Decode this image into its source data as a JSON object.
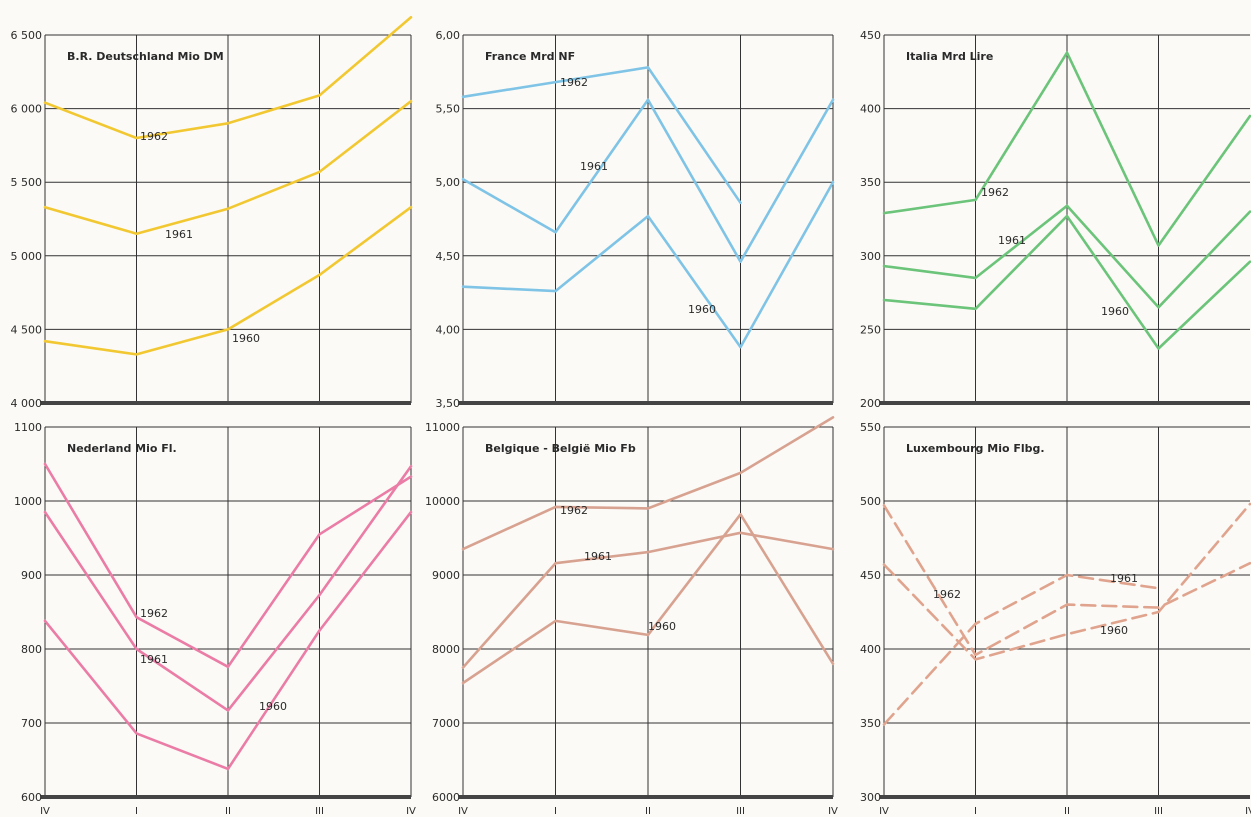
{
  "chart_data": [
    {
      "type": "line",
      "title": "B.R. Deutschland Mio DM",
      "color": "#f2c832",
      "dashed": false,
      "categories": [
        "IV",
        "I",
        "II",
        "III",
        "IV"
      ],
      "yticks": [
        "4 000",
        "4 500",
        "5 000",
        "5 500",
        "6 000",
        "6 500"
      ],
      "ylim": [
        4000,
        6500
      ],
      "series": [
        {
          "name": "1962",
          "values": [
            6040,
            5800,
            5900,
            6090,
            6620
          ]
        },
        {
          "name": "1961",
          "values": [
            5330,
            5150,
            5320,
            5570,
            6050
          ]
        },
        {
          "name": "1960",
          "values": [
            4420,
            4330,
            4500,
            4870,
            5330
          ]
        }
      ]
    },
    {
      "type": "line",
      "title": "France Mrd NF",
      "color": "#7fc4e6",
      "dashed": false,
      "categories": [
        "IV",
        "I",
        "II",
        "III",
        "IV"
      ],
      "yticks": [
        "3,50",
        "4,00",
        "4,50",
        "5,00",
        "5,50",
        "6,00"
      ],
      "ylim": [
        3.5,
        6.0
      ],
      "series": [
        {
          "name": "1962",
          "values": [
            5.58,
            5.68,
            5.78,
            4.86,
            null
          ]
        },
        {
          "name": "1961",
          "values": [
            5.02,
            4.66,
            5.56,
            4.46,
            5.56
          ]
        },
        {
          "name": "1960",
          "values": [
            4.29,
            4.26,
            4.77,
            3.88,
            5.0
          ]
        }
      ]
    },
    {
      "type": "line",
      "title": "Italia Mrd Lire",
      "color": "#6bc479",
      "dashed": false,
      "categories": [
        "IV",
        "I",
        "II",
        "III",
        "IV"
      ],
      "yticks": [
        "200",
        "250",
        "300",
        "350",
        "400",
        "450"
      ],
      "ylim": [
        200,
        450
      ],
      "series": [
        {
          "name": "1962",
          "values": [
            329,
            338,
            438,
            307,
            395
          ]
        },
        {
          "name": "1961",
          "values": [
            293,
            285,
            334,
            265,
            330
          ]
        },
        {
          "name": "1960",
          "values": [
            270,
            264,
            327,
            237,
            296
          ]
        }
      ]
    },
    {
      "type": "line",
      "title": "Nederland Mio Fl.",
      "color": "#ea7ca6",
      "dashed": false,
      "categories": [
        "IV",
        "I",
        "II",
        "III",
        "IV"
      ],
      "yticks": [
        "600",
        "700",
        "800",
        "900",
        "1000",
        "1100"
      ],
      "ylim": [
        600,
        1100
      ],
      "series": [
        {
          "name": "1962",
          "values": [
            1050,
            843,
            776,
            955,
            1033
          ]
        },
        {
          "name": "1961",
          "values": [
            985,
            800,
            717,
            873,
            1047
          ]
        },
        {
          "name": "1960",
          "values": [
            838,
            686,
            638,
            825,
            985
          ]
        }
      ]
    },
    {
      "type": "line",
      "title": "Belgique - België Mio Fb",
      "color": "#d8a291",
      "dashed": false,
      "categories": [
        "IV",
        "I",
        "II",
        "III",
        "IV"
      ],
      "yticks": [
        "6000",
        "7000",
        "8000",
        "9000",
        "10000",
        "11000"
      ],
      "ylim": [
        6000,
        11000
      ],
      "series": [
        {
          "name": "1962",
          "values": [
            9350,
            9920,
            9900,
            10380,
            11130
          ]
        },
        {
          "name": "1961",
          "values": [
            7750,
            9160,
            9310,
            9570,
            9350
          ]
        },
        {
          "name": "1960",
          "values": [
            7540,
            8380,
            8190,
            9820,
            7800
          ]
        }
      ]
    },
    {
      "type": "line",
      "title": "Luxembourg Mio Flbg.",
      "color": "#e0a48e",
      "dashed": true,
      "categories": [
        "IV",
        "I",
        "II",
        "III",
        "IV"
      ],
      "yticks": [
        "300",
        "350",
        "400",
        "450",
        "500",
        "550"
      ],
      "ylim": [
        300,
        550
      ],
      "series": [
        {
          "name": "1962",
          "values": [
            457,
            393,
            410,
            425,
            498
          ]
        },
        {
          "name": "1961",
          "values": [
            349,
            417,
            450,
            441,
            null
          ]
        },
        {
          "name": "1960",
          "values": [
            497,
            396,
            430,
            428,
            458
          ]
        }
      ]
    }
  ]
}
